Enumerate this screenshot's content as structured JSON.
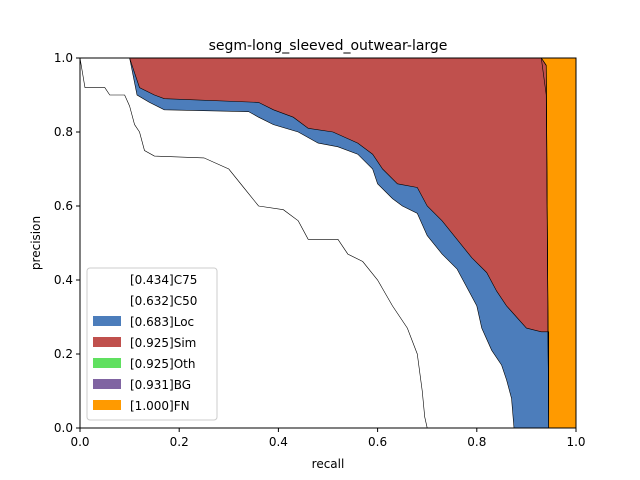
{
  "chart_data": {
    "type": "area",
    "title": "segm-long_sleeved_outwear-large",
    "xlabel": "recall",
    "ylabel": "precision",
    "xlim": [
      0,
      1
    ],
    "ylim": [
      0,
      1
    ],
    "xticks": [
      "0.0",
      "0.2",
      "0.4",
      "0.6",
      "0.8",
      "1.0"
    ],
    "yticks": [
      "0.0",
      "0.2",
      "0.4",
      "0.6",
      "0.8",
      "1.0"
    ],
    "grid": false,
    "legend_position": "lower-left",
    "legend": [
      {
        "label": "[0.434]C75",
        "color": "#ffffff"
      },
      {
        "label": "[0.632]C50",
        "color": "#ffffff"
      },
      {
        "label": "[0.683]Loc",
        "color": "#4c7dbb"
      },
      {
        "label": "[0.925]Sim",
        "color": "#c0504d"
      },
      {
        "label": "[0.925]Oth",
        "color": "#60e060"
      },
      {
        "label": "[0.931]BG",
        "color": "#8064a2"
      },
      {
        "label": "[1.000]FN",
        "color": "#ff9a00"
      }
    ],
    "series": [
      {
        "name": "C75",
        "fill": "#ffffff",
        "points": [
          [
            0,
            1
          ],
          [
            0.01,
            0.92
          ],
          [
            0.05,
            0.92
          ],
          [
            0.06,
            0.9
          ],
          [
            0.09,
            0.9
          ],
          [
            0.1,
            0.87
          ],
          [
            0.11,
            0.82
          ],
          [
            0.12,
            0.8
          ],
          [
            0.13,
            0.75
          ],
          [
            0.15,
            0.735
          ],
          [
            0.25,
            0.73
          ],
          [
            0.3,
            0.7
          ],
          [
            0.33,
            0.65
          ],
          [
            0.36,
            0.6
          ],
          [
            0.41,
            0.59
          ],
          [
            0.44,
            0.56
          ],
          [
            0.46,
            0.51
          ],
          [
            0.52,
            0.51
          ],
          [
            0.54,
            0.47
          ],
          [
            0.57,
            0.45
          ],
          [
            0.6,
            0.4
          ],
          [
            0.63,
            0.33
          ],
          [
            0.66,
            0.27
          ],
          [
            0.68,
            0.2
          ],
          [
            0.69,
            0.1
          ],
          [
            0.695,
            0.03
          ],
          [
            0.7,
            0
          ]
        ]
      },
      {
        "name": "C50",
        "fill": "#ffffff",
        "points": [
          [
            0,
            1
          ],
          [
            0.1,
            1
          ],
          [
            0.115,
            0.9
          ],
          [
            0.14,
            0.88
          ],
          [
            0.17,
            0.86
          ],
          [
            0.34,
            0.855
          ],
          [
            0.36,
            0.84
          ],
          [
            0.39,
            0.82
          ],
          [
            0.44,
            0.8
          ],
          [
            0.48,
            0.77
          ],
          [
            0.52,
            0.76
          ],
          [
            0.56,
            0.74
          ],
          [
            0.59,
            0.7
          ],
          [
            0.6,
            0.66
          ],
          [
            0.63,
            0.62
          ],
          [
            0.65,
            0.6
          ],
          [
            0.68,
            0.58
          ],
          [
            0.7,
            0.52
          ],
          [
            0.73,
            0.47
          ],
          [
            0.76,
            0.43
          ],
          [
            0.78,
            0.38
          ],
          [
            0.8,
            0.33
          ],
          [
            0.81,
            0.27
          ],
          [
            0.83,
            0.21
          ],
          [
            0.85,
            0.17
          ],
          [
            0.86,
            0.13
          ],
          [
            0.87,
            0.08
          ],
          [
            0.875,
            0
          ]
        ]
      },
      {
        "name": "Loc",
        "fill": "#4c7dbb",
        "points": [
          [
            0,
            1
          ],
          [
            0.1,
            1
          ],
          [
            0.12,
            0.92
          ],
          [
            0.15,
            0.9
          ],
          [
            0.17,
            0.89
          ],
          [
            0.36,
            0.88
          ],
          [
            0.39,
            0.86
          ],
          [
            0.43,
            0.84
          ],
          [
            0.46,
            0.81
          ],
          [
            0.51,
            0.8
          ],
          [
            0.56,
            0.77
          ],
          [
            0.59,
            0.74
          ],
          [
            0.61,
            0.7
          ],
          [
            0.64,
            0.66
          ],
          [
            0.68,
            0.65
          ],
          [
            0.7,
            0.6
          ],
          [
            0.73,
            0.56
          ],
          [
            0.76,
            0.51
          ],
          [
            0.79,
            0.46
          ],
          [
            0.82,
            0.42
          ],
          [
            0.84,
            0.37
          ],
          [
            0.86,
            0.33
          ],
          [
            0.88,
            0.3
          ],
          [
            0.9,
            0.27
          ],
          [
            0.93,
            0.26
          ],
          [
            0.945,
            0.26
          ],
          [
            0.945,
            0
          ]
        ]
      },
      {
        "name": "Sim",
        "fill": "#c0504d",
        "points": [
          [
            0,
            1
          ],
          [
            0.93,
            1
          ],
          [
            0.94,
            0.98
          ],
          [
            0.945,
            0
          ]
        ]
      },
      {
        "name": "Oth",
        "fill": "#60e060",
        "points": [
          [
            0,
            1
          ],
          [
            0.93,
            1
          ],
          [
            0.94,
            0.98
          ],
          [
            0.945,
            0
          ]
        ]
      },
      {
        "name": "BG",
        "fill": "#8064a2",
        "points": [
          [
            0,
            1
          ],
          [
            0.93,
            1
          ],
          [
            0.935,
            0.95
          ],
          [
            0.94,
            0.9
          ],
          [
            0.945,
            0
          ]
        ]
      },
      {
        "name": "FN",
        "fill": "#ff9a00",
        "points": [
          [
            0,
            1
          ],
          [
            1,
            1
          ],
          [
            1,
            0
          ]
        ]
      }
    ]
  }
}
